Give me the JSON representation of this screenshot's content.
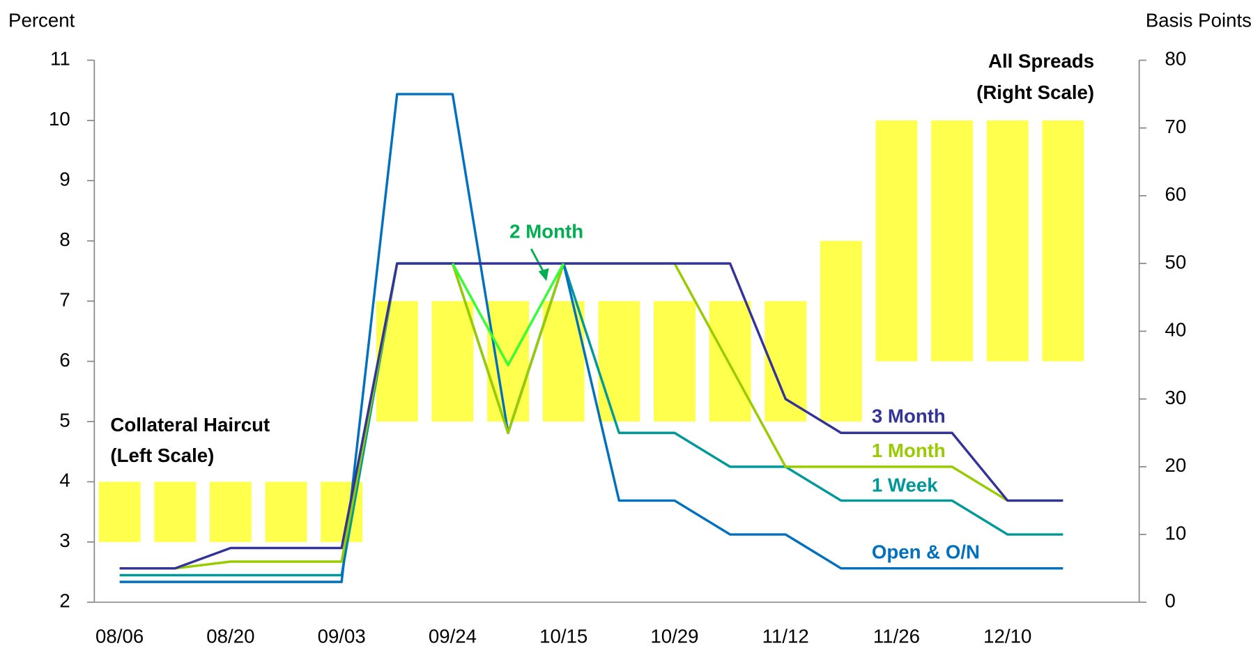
{
  "chart_data": {
    "type": "combo",
    "y_label": "Percent",
    "y2_label": "Basis Points",
    "categories": [
      "08/06",
      null,
      "08/20",
      null,
      "09/03",
      null,
      "09/24",
      null,
      "10/15",
      null,
      "10/29",
      null,
      "11/12",
      null,
      "11/26",
      null,
      "12/10",
      null
    ],
    "bars": {
      "color": "#ffff4d",
      "low": [
        3,
        3,
        3,
        3,
        3,
        5,
        5,
        5,
        5,
        5,
        5,
        5,
        5,
        5,
        6,
        6,
        6,
        6
      ],
      "values": [
        4,
        4,
        4,
        4,
        4,
        7,
        7,
        7,
        7,
        7,
        7,
        7,
        7,
        8,
        10,
        10,
        10,
        10
      ]
    },
    "series": [
      {
        "name": "3 Month",
        "color": "#333399",
        "axis": "y2",
        "values": [
          5,
          5,
          8,
          8,
          8,
          50,
          50,
          50,
          50,
          50,
          50,
          50,
          30,
          25,
          25,
          25,
          15,
          15
        ]
      },
      {
        "name": "1 Month",
        "color": "#99cc00",
        "axis": "y2",
        "values": [
          5,
          5,
          6,
          6,
          6,
          50,
          50,
          25,
          50,
          50,
          50,
          35,
          20,
          20,
          20,
          20,
          15,
          15
        ]
      },
      {
        "name": "1 Week",
        "color": "#009999",
        "axis": "y2",
        "values": [
          4,
          4,
          4,
          4,
          4,
          50,
          50,
          25,
          50,
          25,
          25,
          20,
          20,
          15,
          15,
          15,
          10,
          10
        ]
      },
      {
        "name": "Open & O/N",
        "color": "#0070c0",
        "axis": "y2",
        "values": [
          3,
          3,
          3,
          3,
          3,
          75,
          75,
          25,
          50,
          15,
          15,
          10,
          10,
          5,
          5,
          5,
          5,
          5
        ]
      },
      {
        "name": "2 Month",
        "color": "#33ff33",
        "label_color": "#00b050",
        "axis": "y2",
        "values": [
          null,
          null,
          null,
          null,
          null,
          null,
          50,
          35,
          50,
          null,
          null,
          null,
          null,
          null,
          null,
          null,
          null,
          null
        ]
      }
    ],
    "annotations": [
      "Collateral Haircut",
      "(Left Scale)",
      "All Spreads",
      "(Right Scale)"
    ],
    "ylim": [
      2,
      11
    ],
    "yticks": [
      2,
      3,
      4,
      5,
      6,
      7,
      8,
      9,
      10,
      11
    ],
    "y2lim": [
      0,
      80
    ],
    "y2ticks": [
      0,
      10,
      20,
      30,
      40,
      50,
      60,
      70,
      80
    ]
  }
}
